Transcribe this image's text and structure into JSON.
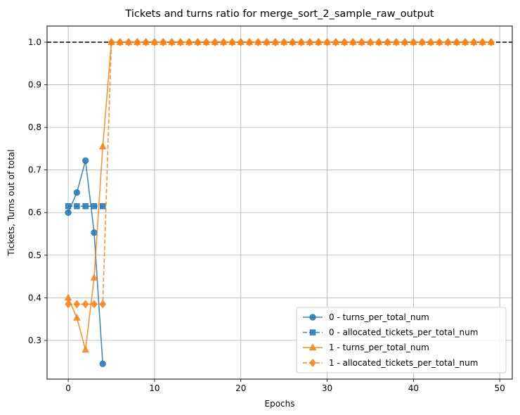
{
  "chart_data": {
    "type": "line",
    "title": "Tickets and turns ratio for merge_sort_2_sample_raw_output",
    "xlabel": "Epochs",
    "ylabel": "Tickets, Turns out of total",
    "xlim": [
      -2.45,
      51.45
    ],
    "ylim": [
      0.209,
      1.038
    ],
    "xticks": [
      0,
      10,
      20,
      30,
      40,
      50
    ],
    "yticks": [
      0.3,
      0.4,
      0.5,
      0.6,
      0.7,
      0.8,
      0.9,
      1.0
    ],
    "ytick_labels": [
      "0.3",
      "0.4",
      "0.5",
      "0.6",
      "0.7",
      "0.8",
      "0.9",
      "1.0"
    ],
    "grid": true,
    "legend_position": "lower right",
    "reference_line": {
      "y": 1.0,
      "style": "dashed",
      "color": "#000000"
    },
    "series": [
      {
        "name": "0 - turns_per_total_num",
        "color": "#1f77b4",
        "marker": "circle",
        "linestyle": "solid",
        "x": [
          0,
          1,
          2,
          3,
          4
        ],
        "values": [
          0.6,
          0.647,
          0.722,
          0.553,
          0.245
        ]
      },
      {
        "name": "0 - allocated_tickets_per_total_num",
        "color": "#1f77b4",
        "marker": "square",
        "linestyle": "dashed",
        "x": [
          0,
          1,
          2,
          3,
          4
        ],
        "values": [
          0.615,
          0.615,
          0.615,
          0.615,
          0.615
        ]
      },
      {
        "name": "1 - turns_per_total_num",
        "color": "#ff7f0e",
        "marker": "triangle",
        "linestyle": "solid",
        "x": [
          0,
          1,
          2,
          3,
          4,
          5,
          6,
          7,
          8,
          9,
          10,
          11,
          12,
          13,
          14,
          15,
          16,
          17,
          18,
          19,
          20,
          21,
          22,
          23,
          24,
          25,
          26,
          27,
          28,
          29,
          30,
          31,
          32,
          33,
          34,
          35,
          36,
          37,
          38,
          39,
          40,
          41,
          42,
          43,
          44,
          45,
          46,
          47,
          48,
          49
        ],
        "values": [
          0.4,
          0.353,
          0.278,
          0.447,
          0.755,
          1.0,
          1.0,
          1.0,
          1.0,
          1.0,
          1.0,
          1.0,
          1.0,
          1.0,
          1.0,
          1.0,
          1.0,
          1.0,
          1.0,
          1.0,
          1.0,
          1.0,
          1.0,
          1.0,
          1.0,
          1.0,
          1.0,
          1.0,
          1.0,
          1.0,
          1.0,
          1.0,
          1.0,
          1.0,
          1.0,
          1.0,
          1.0,
          1.0,
          1.0,
          1.0,
          1.0,
          1.0,
          1.0,
          1.0,
          1.0,
          1.0,
          1.0,
          1.0,
          1.0,
          1.0
        ]
      },
      {
        "name": "1 - allocated_tickets_per_total_num",
        "color": "#ff7f0e",
        "marker": "diamond",
        "linestyle": "dashed",
        "x": [
          0,
          1,
          2,
          3,
          4,
          5,
          6,
          7,
          8,
          9,
          10,
          11,
          12,
          13,
          14,
          15,
          16,
          17,
          18,
          19,
          20,
          21,
          22,
          23,
          24,
          25,
          26,
          27,
          28,
          29,
          30,
          31,
          32,
          33,
          34,
          35,
          36,
          37,
          38,
          39,
          40,
          41,
          42,
          43,
          44,
          45,
          46,
          47,
          48,
          49
        ],
        "values": [
          0.385,
          0.385,
          0.385,
          0.385,
          0.385,
          1.0,
          1.0,
          1.0,
          1.0,
          1.0,
          1.0,
          1.0,
          1.0,
          1.0,
          1.0,
          1.0,
          1.0,
          1.0,
          1.0,
          1.0,
          1.0,
          1.0,
          1.0,
          1.0,
          1.0,
          1.0,
          1.0,
          1.0,
          1.0,
          1.0,
          1.0,
          1.0,
          1.0,
          1.0,
          1.0,
          1.0,
          1.0,
          1.0,
          1.0,
          1.0,
          1.0,
          1.0,
          1.0,
          1.0,
          1.0,
          1.0,
          1.0,
          1.0,
          1.0,
          1.0
        ]
      }
    ]
  }
}
